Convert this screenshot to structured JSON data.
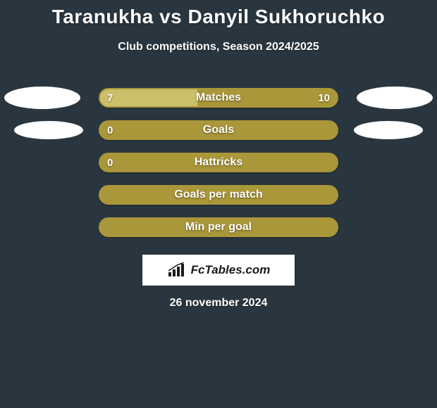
{
  "background_color": "#2a363f",
  "text_color": "#ffffff",
  "bar_color": "#aa9739",
  "bar_border_color": "#aa9739",
  "bar_fill_light": "#cbbf6a",
  "badge_color": "#ffffff",
  "brand_bg": "#ffffff",
  "brand_text_color": "#1a1a1a",
  "title_fontsize": 28,
  "subtitle_fontsize": 16,
  "label_fontsize": 16,
  "value_fontsize": 15,
  "title": "Taranukha vs Danyil Sukhoruchko",
  "subtitle": "Club competitions, Season 2024/2025",
  "brand": "FcTables.com",
  "date_text": "26 november 2024",
  "rows": [
    {
      "label": "Matches",
      "left_value": "7",
      "right_value": "10",
      "left_pct": 41,
      "right_pct": 59,
      "show_left_badge": true,
      "show_right_badge": true,
      "show_left_value": true,
      "show_right_value": true,
      "swap_shades": true
    },
    {
      "label": "Goals",
      "left_value": "0",
      "right_value": "",
      "left_pct": 0,
      "right_pct": 0,
      "show_left_badge": true,
      "show_right_badge": true,
      "show_left_value": true,
      "show_right_value": false,
      "swap_shades": false
    },
    {
      "label": "Hattricks",
      "left_value": "0",
      "right_value": "",
      "left_pct": 0,
      "right_pct": 0,
      "show_left_badge": false,
      "show_right_badge": false,
      "show_left_value": true,
      "show_right_value": false,
      "swap_shades": false
    },
    {
      "label": "Goals per match",
      "left_value": "",
      "right_value": "",
      "left_pct": 0,
      "right_pct": 0,
      "show_left_badge": false,
      "show_right_badge": false,
      "show_left_value": false,
      "show_right_value": false,
      "swap_shades": false
    },
    {
      "label": "Min per goal",
      "left_value": "",
      "right_value": "",
      "left_pct": 0,
      "right_pct": 0,
      "show_left_badge": false,
      "show_right_badge": false,
      "show_left_value": false,
      "show_right_value": false,
      "swap_shades": false
    }
  ]
}
